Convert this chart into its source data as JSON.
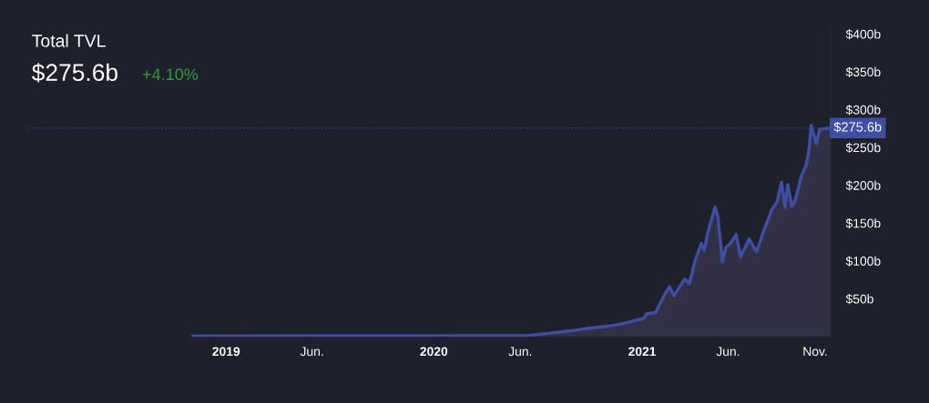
{
  "chart_data": {
    "type": "area",
    "title": "Total TVL",
    "subtitle": "$275.6b",
    "annotations": [
      "+4.10%"
    ],
    "x": [
      "2018-11-04",
      "2019-06-01",
      "2020-01-01",
      "2020-06-15",
      "2020-07-20",
      "2020-09-03",
      "2020-09-20",
      "2020-10-26",
      "2020-11-22",
      "2021-01-04",
      "2021-01-09",
      "2021-01-25",
      "2021-02-10",
      "2021-02-18",
      "2021-02-26",
      "2021-03-17",
      "2021-03-25",
      "2021-04-04",
      "2021-04-15",
      "2021-04-20",
      "2021-04-26",
      "2021-05-09",
      "2021-05-14",
      "2021-05-22",
      "2021-05-28",
      "2021-06-06",
      "2021-06-15",
      "2021-06-23",
      "2021-07-08",
      "2021-07-21",
      "2021-08-02",
      "2021-08-17",
      "2021-08-26",
      "2021-09-03",
      "2021-09-09",
      "2021-09-14",
      "2021-09-21",
      "2021-09-27",
      "2021-10-08",
      "2021-10-16",
      "2021-10-21",
      "2021-10-25",
      "2021-11-03",
      "2021-11-09",
      "2021-11-28"
    ],
    "series": [
      {
        "color": "#3f4ea3",
        "values": [
          0.5,
          0.8,
          0.9,
          1.5,
          4,
          8,
          10,
          13,
          16,
          24,
          30,
          32,
          56,
          66,
          54,
          76,
          70,
          100,
          123,
          114,
          136,
          171,
          159,
          99,
          117,
          124,
          135,
          105,
          129,
          112,
          138,
          168,
          178,
          204,
          171,
          201,
          172,
          180,
          213,
          226,
          246,
          279,
          255,
          274,
          275.6
        ]
      }
    ],
    "xlim": [
      "2018-11-01",
      "2021-11-28"
    ],
    "xticks": [
      {
        "value": "2019-01-01",
        "label": "2019"
      },
      {
        "value": "2019-06-01",
        "label": "Jun."
      },
      {
        "value": "2020-01-01",
        "label": "2020"
      },
      {
        "value": "2020-06-01",
        "label": "Jun."
      },
      {
        "value": "2021-01-01",
        "label": "2021"
      },
      {
        "value": "2021-06-01",
        "label": "Jun."
      },
      {
        "value": "2021-11-01",
        "label": "Nov."
      }
    ],
    "ylim": [
      0,
      410
    ],
    "yticks": [
      {
        "value": 50,
        "label": "$50b"
      },
      {
        "value": 100,
        "label": "$100b"
      },
      {
        "value": 150,
        "label": "$150b"
      },
      {
        "value": 200,
        "label": "$200b"
      },
      {
        "value": 250,
        "label": "$250b"
      },
      {
        "value": 300,
        "label": "$300b"
      },
      {
        "value": 350,
        "label": "$350b"
      },
      {
        "value": 400,
        "label": "$400b"
      }
    ],
    "ref_lines": [
      {
        "axis": "y",
        "value": 275.6,
        "label": "$275.6b",
        "color": "#3f4ea3",
        "line_style": "dotted"
      }
    ],
    "grid": false,
    "legend": false
  }
}
